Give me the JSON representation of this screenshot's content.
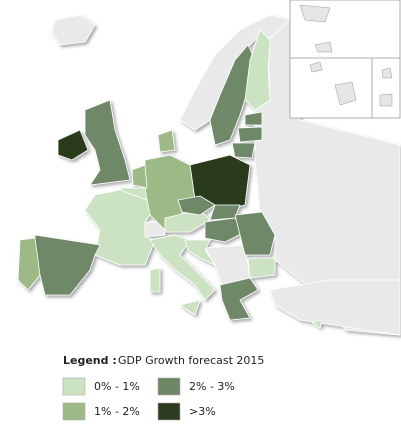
{
  "legend": {
    "heading": "Legend :",
    "title": "GDP Growth forecast 2015",
    "items": [
      {
        "label": "0% - 1%",
        "color": "#cbe3c2"
      },
      {
        "label": "1% - 2%",
        "color": "#9dba86"
      },
      {
        "label": "2% - 3%",
        "color": "#6e8867"
      },
      {
        "label": ">3%",
        "color": "#2c3b1f"
      }
    ]
  }
}
